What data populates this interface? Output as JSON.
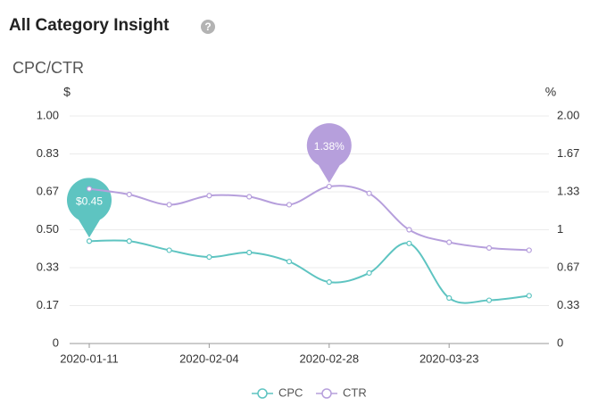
{
  "header": {
    "title": "All Category Insight"
  },
  "chart_data": {
    "type": "line",
    "title": "CPC/CTR",
    "y_label": "$",
    "y2_label": "%",
    "categories": [
      "2020-01-11",
      null,
      null,
      "2020-02-04",
      null,
      null,
      "2020-02-28",
      null,
      null,
      "2020-03-23",
      null,
      null
    ],
    "series": [
      {
        "name": "CPC",
        "color": "#5ec4c1",
        "values": [
          0.45,
          0.45,
          0.41,
          0.38,
          0.4,
          0.36,
          0.27,
          0.31,
          0.44,
          0.2,
          0.19,
          0.21
        ],
        "value_labels": [
          "$0.45",
          null,
          null,
          null,
          null,
          null,
          null,
          null,
          null,
          null,
          null,
          null
        ]
      },
      {
        "name": "CTR",
        "color": "#b69fdc",
        "axis": "y2",
        "values": [
          1.36,
          1.31,
          1.22,
          1.3,
          1.29,
          1.22,
          1.38,
          1.32,
          1.0,
          0.89,
          0.84,
          0.82
        ],
        "value_labels": [
          null,
          null,
          null,
          null,
          null,
          null,
          "1.38%",
          null,
          null,
          null,
          null,
          null
        ]
      }
    ],
    "ylim": [
      0,
      1
    ],
    "yticks": [
      0,
      {
        "value": 0.1667,
        "label": "0.17"
      },
      {
        "value": 0.3333,
        "label": "0.33"
      },
      {
        "value": 0.5,
        "label": "0.50"
      },
      {
        "value": 0.6667,
        "label": "0.67"
      },
      {
        "value": 0.8333,
        "label": "0.83"
      },
      {
        "value": 1,
        "label": "1.00"
      }
    ],
    "y2lim": [
      0,
      2
    ],
    "y2ticks": [
      0,
      {
        "value": 0.3333,
        "label": "0.33"
      },
      {
        "value": 0.6667,
        "label": "0.67"
      },
      1,
      {
        "value": 1.3333,
        "label": "1.33"
      },
      {
        "value": 1.6667,
        "label": "1.67"
      },
      {
        "value": 2,
        "label": "2.00"
      }
    ],
    "grid": true,
    "legend": "bottom"
  }
}
